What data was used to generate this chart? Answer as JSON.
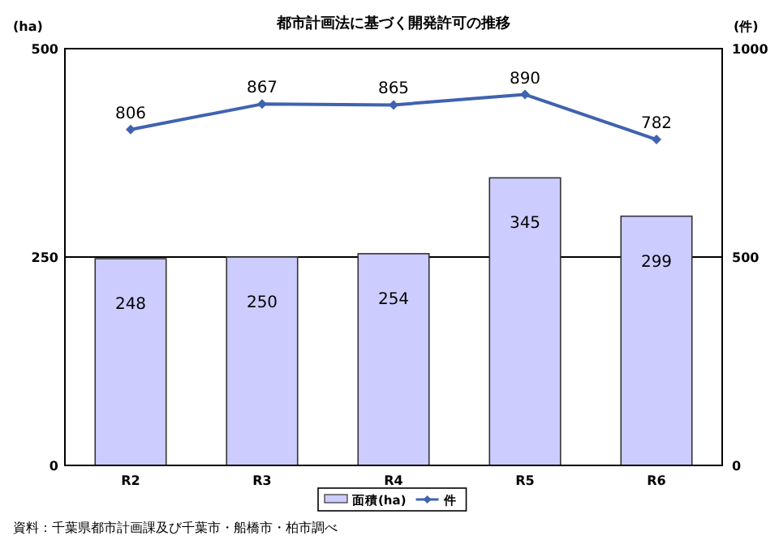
{
  "chart_data": {
    "type": "bar",
    "title": "都市計画法に基づく開発許可の推移",
    "ylabel": "(ha)",
    "y2label": "(件)",
    "categories": [
      "R2",
      "R3",
      "R4",
      "R5",
      "R6"
    ],
    "series": [
      {
        "name": "面積(ha)",
        "color": "#ccccff",
        "values": [
          248,
          250,
          254,
          345,
          299
        ]
      },
      {
        "name": "件",
        "type": "line",
        "axis": "y2",
        "color": "#3f63b0",
        "marker": "diamond",
        "values": [
          806,
          867,
          865,
          890,
          782
        ]
      }
    ],
    "ylim": [
      0,
      500
    ],
    "yticks": [
      0,
      250,
      500
    ],
    "y2lim": [
      0,
      1000
    ],
    "y2ticks": [
      0,
      500,
      1000
    ],
    "grid": "y",
    "data_labels": true,
    "legend": "bottom",
    "annotations": [
      "資料：千葉県都市計画課及び千葉市・船橋市・柏市調べ"
    ]
  }
}
